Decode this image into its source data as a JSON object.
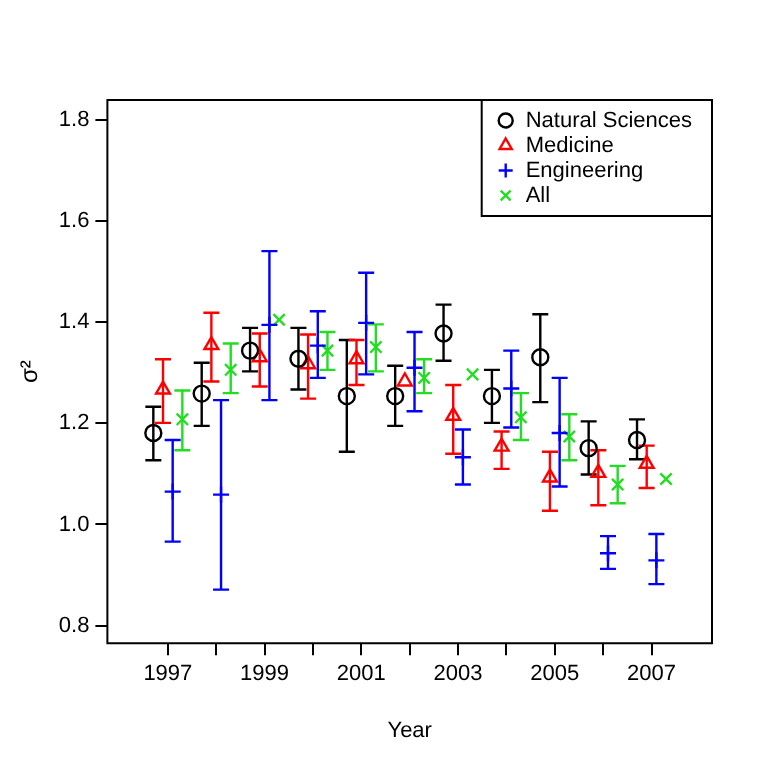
{
  "chart_data": {
    "type": "scatter",
    "xlabel": "Year",
    "ylabel": "σ²",
    "xlim": [
      1995.75,
      2008.25
    ],
    "ylim": [
      0.765,
      1.84
    ],
    "xticks": [
      1997,
      {
        "value": 1998,
        "label": null
      },
      1999,
      {
        "value": 2000,
        "label": null
      },
      2001,
      {
        "value": 2002,
        "label": null
      },
      2003,
      {
        "value": 2004,
        "label": null
      },
      2005,
      {
        "value": 2006,
        "label": null
      },
      2007
    ],
    "yticks": [
      0.8,
      {
        "value": 1.0,
        "label": "1.0"
      },
      1.2,
      1.4,
      1.6,
      1.8
    ],
    "grid": false,
    "legend": "top right",
    "series": [
      {
        "name": "Natural Sciences",
        "color": "#000000",
        "marker": "circle",
        "x": [
          1996.7,
          1997.7,
          1998.7,
          1999.7,
          2000.7,
          2001.7,
          2002.7,
          2003.7,
          2004.7,
          2005.7,
          2006.7
        ],
        "values": [
          1.181,
          1.259,
          1.344,
          1.328,
          1.254,
          1.254,
          1.378,
          1.254,
          1.331,
          1.151,
          1.167
        ],
        "errors": [
          [
            1.127,
            1.233
          ],
          [
            1.195,
            1.32
          ],
          [
            1.303,
            1.389
          ],
          [
            1.267,
            1.389
          ],
          [
            1.144,
            1.365
          ],
          [
            1.195,
            1.314
          ],
          [
            1.324,
            1.435
          ],
          [
            1.201,
            1.306
          ],
          [
            1.242,
            1.416
          ],
          [
            1.099,
            1.204
          ],
          [
            1.129,
            1.208
          ]
        ]
      },
      {
        "name": "Medicine",
        "color": "#ff0000",
        "marker": "triangle",
        "x": [
          1996.9,
          1997.9,
          1998.9,
          1999.9,
          2000.9,
          2001.9,
          2002.9,
          2003.9,
          2004.9,
          2005.9,
          2006.9
        ],
        "values": [
          1.267,
          1.355,
          1.331,
          1.317,
          1.327,
          1.283,
          1.215,
          1.154,
          1.093,
          1.102,
          1.12
        ],
        "errors": [
          [
            1.201,
            1.327
          ],
          [
            1.283,
            1.419
          ],
          [
            1.273,
            1.378
          ],
          [
            1.249,
            1.376
          ],
          [
            1.276,
            1.365
          ],
          null,
          [
            1.14,
            1.276
          ],
          [
            1.11,
            1.184
          ],
          [
            1.027,
            1.144
          ],
          [
            1.038,
            1.147
          ],
          [
            1.072,
            1.156
          ]
        ]
      },
      {
        "name": "Engineering",
        "color": "#0000ff",
        "marker": "cross",
        "x": [
          1997.1,
          1998.1,
          1999.1,
          2000.1,
          2001.1,
          2002.1,
          2003.1,
          2004.1,
          2005.1,
          2006.1,
          2007.1
        ],
        "values": [
          1.065,
          1.059,
          1.395,
          1.354,
          1.399,
          1.31,
          1.133,
          1.269,
          1.181,
          0.943,
          0.929
        ],
        "errors": [
          [
            0.966,
            1.167
          ],
          [
            0.871,
            1.246
          ],
          [
            1.246,
            1.541
          ],
          [
            1.29,
            1.422
          ],
          [
            1.297,
            1.498
          ],
          [
            1.224,
            1.381
          ],
          [
            1.079,
            1.188
          ],
          [
            1.192,
            1.344
          ],
          [
            1.075,
            1.29
          ],
          [
            0.912,
            0.977
          ],
          [
            0.882,
            0.981
          ]
        ]
      },
      {
        "name": "All",
        "color": "#22dd22",
        "marker": "x",
        "x": [
          1997.3,
          1998.3,
          1999.3,
          2000.3,
          2001.3,
          2002.3,
          2003.3,
          2004.3,
          2005.3,
          2006.3,
          2007.3
        ],
        "values": [
          1.208,
          1.306,
          1.405,
          1.344,
          1.351,
          1.29,
          1.297,
          1.212,
          1.174,
          1.079,
          1.09
        ],
        "errors": [
          [
            1.147,
            1.265
          ],
          [
            1.26,
            1.358
          ],
          null,
          [
            1.306,
            1.381
          ],
          [
            1.303,
            1.396
          ],
          [
            1.26,
            1.327
          ],
          null,
          [
            1.167,
            1.26
          ],
          [
            1.127,
            1.218
          ],
          [
            1.042,
            1.116
          ],
          null
        ]
      }
    ]
  }
}
